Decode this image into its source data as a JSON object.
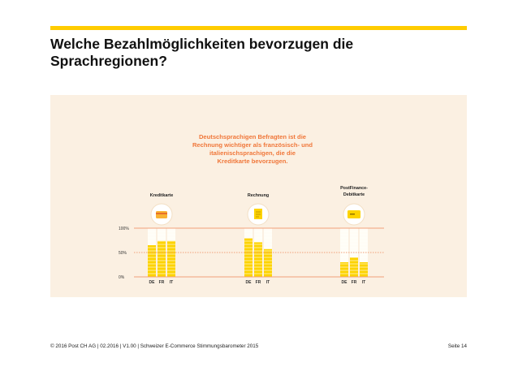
{
  "slide": {
    "title_line1": "Welche Bezahlmöglichkeiten bevorzugen die",
    "title_line2": "Sprachregionen?",
    "footer": "© 2016 Post CH AG | 02.2016 | V1.00 | Schweizer E-Commerce Stimmungsbarometer 2015",
    "page": "Seite 14"
  },
  "colors": {
    "accent": "#ffcc00",
    "bar_fill": "#fdd300",
    "bar_empty": "#fffdf6",
    "highlight_text": "#f0773a",
    "gridline": "#f0a07a",
    "panel_bg": "#fbf0e2"
  },
  "chart_data": {
    "type": "bar",
    "callout": [
      "Deutschsprachigen Befragten ist die",
      "Rechnung wichtiger als französisch- und",
      "italienischsprachigen, die die",
      "Kreditkarte bevorzugen."
    ],
    "ylim": [
      0,
      100
    ],
    "y_ticks": [
      "100%",
      "50%",
      "0%"
    ],
    "groups": [
      {
        "label": [
          "Kreditkarte"
        ],
        "icon": "credit-card-icon",
        "categories": [
          "DE",
          "FR",
          "IT"
        ],
        "values": [
          65,
          74,
          74
        ]
      },
      {
        "label": [
          "Rechnung"
        ],
        "icon": "invoice-icon",
        "categories": [
          "DE",
          "FR",
          "IT"
        ],
        "values": [
          79,
          71,
          57
        ]
      },
      {
        "label": [
          "PostFinance-",
          "Debitkarte"
        ],
        "icon": "debit-card-icon",
        "categories": [
          "DE",
          "FR",
          "IT"
        ],
        "values": [
          30,
          40,
          30
        ]
      }
    ]
  }
}
